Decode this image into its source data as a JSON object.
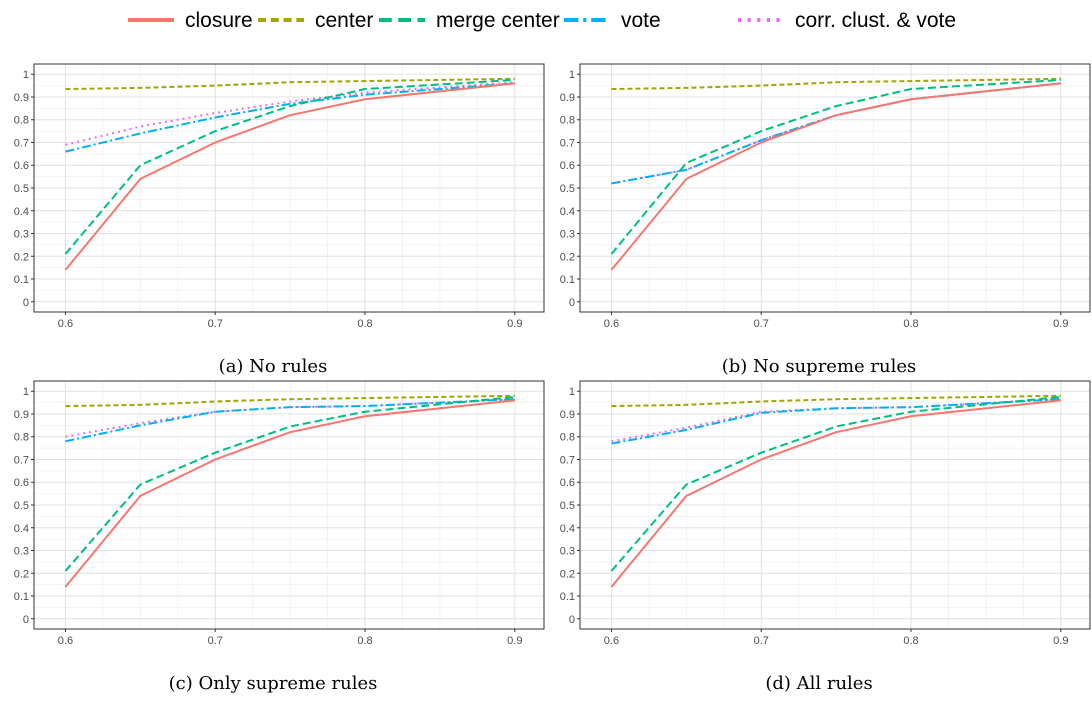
{
  "legend": [
    {
      "name": "closure",
      "color": "#F8766D",
      "dash": "solid"
    },
    {
      "name": "center",
      "color": "#A3A500",
      "dash": "dotted-dash"
    },
    {
      "name": "merge center",
      "color": "#00BF7D",
      "dash": "dashed"
    },
    {
      "name": "vote",
      "color": "#00B0F6",
      "dash": "dash-dot"
    },
    {
      "name": "corr. clust. & vote",
      "color": "#E76BF3",
      "dash": "dotted"
    }
  ],
  "chart_data": [
    {
      "type": "line",
      "caption": "(a) No rules",
      "x": [
        0.6,
        0.65,
        0.7,
        0.75,
        0.8,
        0.9
      ],
      "xticks": [
        "0.6",
        "0.7",
        "0.8",
        "0.9"
      ],
      "yticks": [
        "0",
        "0.1",
        "0.2",
        "0.3",
        "0.4",
        "0.5",
        "0.6",
        "0.7",
        "0.8",
        "0.9",
        "1"
      ],
      "xlim": [
        0.6,
        0.9
      ],
      "ylim": [
        0,
        1
      ],
      "grid": true,
      "series": [
        {
          "name": "closure",
          "values": [
            0.14,
            0.54,
            0.7,
            0.82,
            0.89,
            0.96
          ]
        },
        {
          "name": "center",
          "values": [
            0.935,
            0.94,
            0.95,
            0.965,
            0.97,
            0.98
          ]
        },
        {
          "name": "merge center",
          "values": [
            0.21,
            0.6,
            0.75,
            0.86,
            0.935,
            0.975
          ]
        },
        {
          "name": "vote",
          "values": [
            0.66,
            0.74,
            0.81,
            0.87,
            0.91,
            0.96
          ]
        },
        {
          "name": "corr. clust. & vote",
          "values": [
            0.69,
            0.77,
            0.83,
            0.88,
            0.92,
            0.965
          ]
        }
      ]
    },
    {
      "type": "line",
      "caption": "(b) No supreme rules",
      "x": [
        0.6,
        0.65,
        0.7,
        0.75,
        0.8,
        0.9
      ],
      "xticks": [
        "0.6",
        "0.7",
        "0.8",
        "0.9"
      ],
      "yticks": [
        "0",
        "0.1",
        "0.2",
        "0.3",
        "0.4",
        "0.5",
        "0.6",
        "0.7",
        "0.8",
        "0.9",
        "1"
      ],
      "xlim": [
        0.6,
        0.9
      ],
      "ylim": [
        0,
        1
      ],
      "grid": true,
      "series": [
        {
          "name": "closure",
          "values": [
            0.14,
            0.54,
            0.7,
            0.82,
            0.89,
            0.96
          ]
        },
        {
          "name": "center",
          "values": [
            0.935,
            0.94,
            0.95,
            0.965,
            0.97,
            0.98
          ]
        },
        {
          "name": "merge center",
          "values": [
            0.21,
            0.61,
            0.75,
            0.86,
            0.935,
            0.975
          ]
        },
        {
          "name": "vote",
          "values": [
            0.52,
            0.58,
            0.71,
            0.82,
            0.89,
            0.96
          ]
        },
        {
          "name": "corr. clust. & vote",
          "values": [
            0.52,
            0.58,
            0.71,
            0.82,
            0.89,
            0.96
          ]
        }
      ]
    },
    {
      "type": "line",
      "caption": "(c) Only supreme rules",
      "x": [
        0.6,
        0.65,
        0.7,
        0.75,
        0.8,
        0.9
      ],
      "xticks": [
        "0.6",
        "0.7",
        "0.8",
        "0.9"
      ],
      "yticks": [
        "0",
        "0.1",
        "0.2",
        "0.3",
        "0.4",
        "0.5",
        "0.6",
        "0.7",
        "0.8",
        "0.9",
        "1"
      ],
      "xlim": [
        0.6,
        0.9
      ],
      "ylim": [
        0,
        1
      ],
      "grid": true,
      "series": [
        {
          "name": "closure",
          "values": [
            0.14,
            0.54,
            0.7,
            0.82,
            0.89,
            0.96
          ]
        },
        {
          "name": "center",
          "values": [
            0.935,
            0.94,
            0.955,
            0.965,
            0.97,
            0.98
          ]
        },
        {
          "name": "merge center",
          "values": [
            0.21,
            0.59,
            0.73,
            0.845,
            0.91,
            0.975
          ]
        },
        {
          "name": "vote",
          "values": [
            0.78,
            0.85,
            0.91,
            0.93,
            0.935,
            0.965
          ]
        },
        {
          "name": "corr. clust. & vote",
          "values": [
            0.8,
            0.86,
            0.91,
            0.93,
            0.935,
            0.965
          ]
        }
      ]
    },
    {
      "type": "line",
      "caption": "(d) All rules",
      "x": [
        0.6,
        0.65,
        0.7,
        0.75,
        0.8,
        0.9
      ],
      "xticks": [
        "0.6",
        "0.7",
        "0.8",
        "0.9"
      ],
      "yticks": [
        "0",
        "0.1",
        "0.2",
        "0.3",
        "0.4",
        "0.5",
        "0.6",
        "0.7",
        "0.8",
        "0.9",
        "1"
      ],
      "xlim": [
        0.6,
        0.9
      ],
      "ylim": [
        0,
        1
      ],
      "grid": true,
      "series": [
        {
          "name": "closure",
          "values": [
            0.14,
            0.54,
            0.7,
            0.82,
            0.89,
            0.96
          ]
        },
        {
          "name": "center",
          "values": [
            0.935,
            0.94,
            0.955,
            0.965,
            0.97,
            0.98
          ]
        },
        {
          "name": "merge center",
          "values": [
            0.21,
            0.59,
            0.73,
            0.845,
            0.91,
            0.975
          ]
        },
        {
          "name": "vote",
          "values": [
            0.77,
            0.83,
            0.905,
            0.925,
            0.93,
            0.965
          ]
        },
        {
          "name": "corr. clust. & vote",
          "values": [
            0.78,
            0.84,
            0.91,
            0.925,
            0.93,
            0.965
          ]
        }
      ]
    }
  ]
}
